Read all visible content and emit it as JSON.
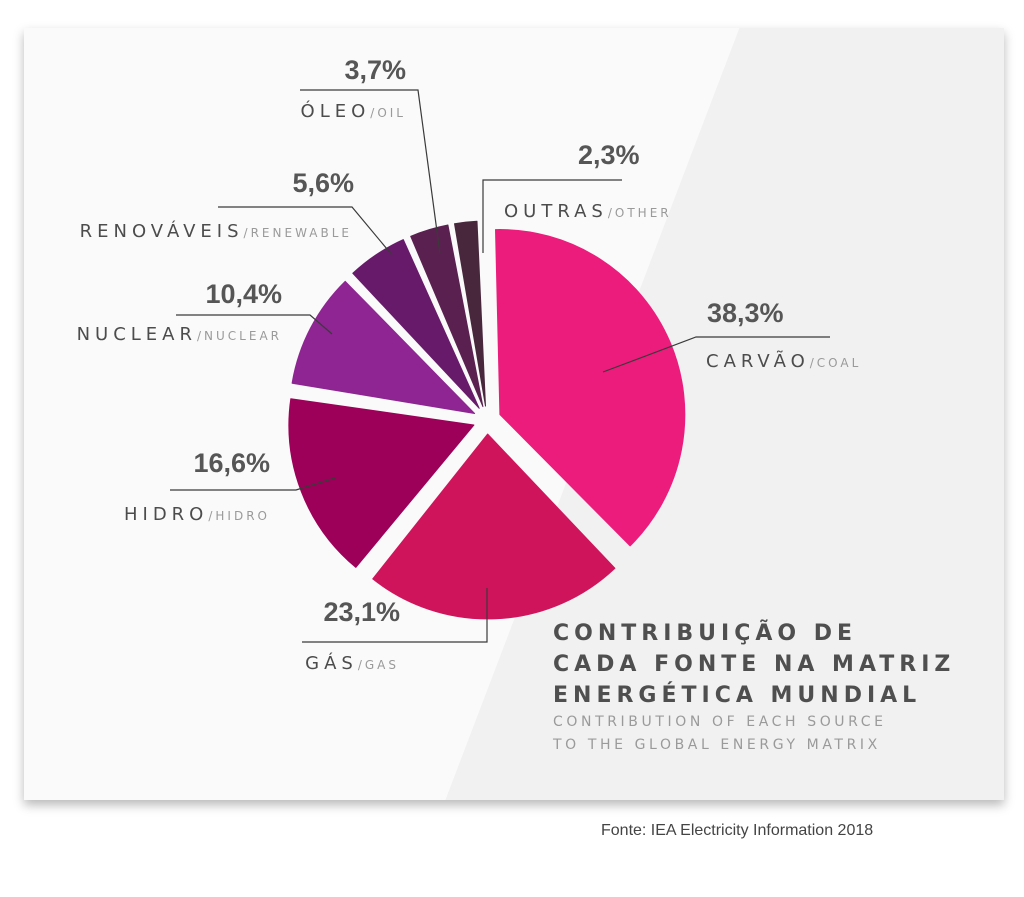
{
  "title": {
    "pt_lines": [
      "CONTRIBUIÇÃO DE",
      "CADA FONTE NA MATRIZ",
      "ENERGÉTICA MUNDIAL"
    ],
    "en_lines": [
      "CONTRIBUTION OF EACH SOURCE",
      "TO THE GLOBAL ENERGY MATRIX"
    ]
  },
  "source": "Fonte: IEA Electricity Information 2018",
  "chart_data": {
    "type": "pie",
    "title": "CONTRIBUIÇÃO DE CADA FONTE NA MATRIZ ENERGÉTICA MUNDIAL",
    "subtitle": "CONTRIBUTION OF EACH SOURCE TO THE GLOBAL ENERGY MATRIX",
    "slices": [
      {
        "key": "coal",
        "label": "CARVÃO",
        "label_en": "/COAL",
        "value": 38.3,
        "value_label": "38,3%",
        "color": "#ec1c7c"
      },
      {
        "key": "gas",
        "label": "GÁS",
        "label_en": "/GAS",
        "value": 23.1,
        "value_label": "23,1%",
        "color": "#d0145c"
      },
      {
        "key": "hidro",
        "label": "HIDRO",
        "label_en": "/HIDRO",
        "value": 16.6,
        "value_label": "16,6%",
        "color": "#9c0058"
      },
      {
        "key": "nuclear",
        "label": "NUCLEAR",
        "label_en": "/NUCLEAR",
        "value": 10.4,
        "value_label": "10,4%",
        "color": "#8e2592"
      },
      {
        "key": "renewable",
        "label": "RENOVÁVEIS",
        "label_en": "/RENEWABLE",
        "value": 5.6,
        "value_label": "5,6%",
        "color": "#681a6a"
      },
      {
        "key": "oil",
        "label": "ÓLEO",
        "label_en": "/OIL",
        "value": 3.7,
        "value_label": "3,7%",
        "color": "#5a2050"
      },
      {
        "key": "other",
        "label": "OUTRAS",
        "label_en": "/OTHER",
        "value": 2.3,
        "value_label": "2,3%",
        "color": "#48273c"
      }
    ]
  }
}
